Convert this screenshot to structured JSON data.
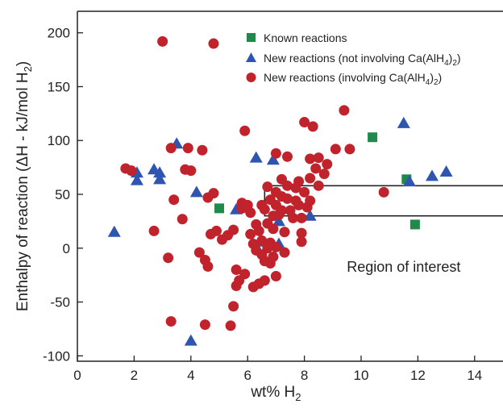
{
  "chart_data": {
    "type": "scatter",
    "xlabel": "wt% H",
    "xlabel_sub": "2",
    "ylabel_parts": [
      "Enthalpy of reaction (ΔH - kJ/mol H",
      "2",
      ")"
    ],
    "xlim": [
      0,
      15
    ],
    "ylim": [
      -105,
      220
    ],
    "x_ticks": [
      0,
      2,
      4,
      6,
      8,
      10,
      12,
      14
    ],
    "y_ticks": [
      -100,
      -50,
      0,
      50,
      100,
      150,
      200
    ],
    "grid": false,
    "legend_position": "top-right",
    "region": {
      "label": "Region of interest",
      "x": [
        6.6,
        15
      ],
      "y": [
        30,
        58
      ]
    },
    "colors": {
      "known": "#1f8a4c",
      "not_involving": "#2e55b0",
      "involving": "#c0232b",
      "axis": "#222222"
    },
    "series": [
      {
        "name": "Known reactions",
        "label_parts": [
          "Known reactions"
        ],
        "marker": "square",
        "color": "#1f8a4c",
        "points": [
          [
            5.0,
            37
          ],
          [
            10.4,
            103
          ],
          [
            11.6,
            64
          ],
          [
            11.9,
            22
          ]
        ]
      },
      {
        "name": "New reactions (not involving Ca(AlH4)2)",
        "label_parts": [
          "New reactions (not involving Ca(AlH",
          "4",
          ")",
          "2",
          ")"
        ],
        "marker": "triangle",
        "color": "#2e55b0",
        "points": [
          [
            1.3,
            15
          ],
          [
            2.1,
            70
          ],
          [
            2.1,
            63
          ],
          [
            2.7,
            73
          ],
          [
            2.9,
            70
          ],
          [
            2.9,
            64
          ],
          [
            3.5,
            97
          ],
          [
            4.0,
            -86
          ],
          [
            4.2,
            52
          ],
          [
            5.6,
            36
          ],
          [
            6.3,
            84
          ],
          [
            6.5,
            6
          ],
          [
            6.9,
            82
          ],
          [
            7.1,
            4
          ],
          [
            7.1,
            25
          ],
          [
            8.2,
            30
          ],
          [
            11.5,
            116
          ],
          [
            11.7,
            62
          ],
          [
            12.5,
            67
          ],
          [
            13.0,
            71
          ]
        ]
      },
      {
        "name": "New reactions (involving Ca(AlH4)2)",
        "label_parts": [
          "New reactions (involving Ca(AlH",
          "4",
          ")",
          "2",
          ")"
        ],
        "marker": "circle",
        "color": "#c0232b",
        "points": [
          [
            1.7,
            74
          ],
          [
            1.9,
            72
          ],
          [
            2.7,
            16
          ],
          [
            3.0,
            192
          ],
          [
            3.2,
            -9
          ],
          [
            3.3,
            93
          ],
          [
            3.3,
            -68
          ],
          [
            3.4,
            45
          ],
          [
            3.7,
            27
          ],
          [
            3.8,
            73
          ],
          [
            3.9,
            93
          ],
          [
            4.0,
            72
          ],
          [
            4.3,
            -4
          ],
          [
            4.4,
            91
          ],
          [
            4.5,
            -71
          ],
          [
            4.5,
            -11
          ],
          [
            4.6,
            -17
          ],
          [
            4.6,
            47
          ],
          [
            4.7,
            13
          ],
          [
            4.8,
            190
          ],
          [
            4.8,
            51
          ],
          [
            4.9,
            16
          ],
          [
            5.1,
            8
          ],
          [
            5.3,
            12
          ],
          [
            5.4,
            -72
          ],
          [
            5.5,
            -54
          ],
          [
            5.5,
            17
          ],
          [
            5.6,
            -35
          ],
          [
            5.6,
            -20
          ],
          [
            5.7,
            -30
          ],
          [
            5.8,
            42
          ],
          [
            5.8,
            37
          ],
          [
            5.9,
            109
          ],
          [
            5.9,
            -24
          ],
          [
            6.0,
            40
          ],
          [
            6.1,
            33
          ],
          [
            6.1,
            13
          ],
          [
            6.2,
            -36
          ],
          [
            6.2,
            4
          ],
          [
            6.3,
            22
          ],
          [
            6.3,
            -2
          ],
          [
            6.4,
            -33
          ],
          [
            6.4,
            16
          ],
          [
            6.5,
            40
          ],
          [
            6.5,
            -6
          ],
          [
            6.5,
            7
          ],
          [
            6.6,
            36
          ],
          [
            6.6,
            -12
          ],
          [
            6.6,
            -30
          ],
          [
            6.7,
            57
          ],
          [
            6.7,
            23
          ],
          [
            6.7,
            0
          ],
          [
            6.8,
            45
          ],
          [
            6.8,
            5
          ],
          [
            6.8,
            -14
          ],
          [
            6.9,
            30
          ],
          [
            6.9,
            18
          ],
          [
            6.9,
            -8
          ],
          [
            7.0,
            88
          ],
          [
            7.0,
            52
          ],
          [
            7.0,
            40
          ],
          [
            7.0,
            1
          ],
          [
            7.0,
            -26
          ],
          [
            7.1,
            31
          ],
          [
            7.2,
            64
          ],
          [
            7.2,
            48
          ],
          [
            7.2,
            35
          ],
          [
            7.3,
            15
          ],
          [
            7.3,
            -4
          ],
          [
            7.4,
            85
          ],
          [
            7.4,
            58
          ],
          [
            7.4,
            46
          ],
          [
            7.5,
            35
          ],
          [
            7.6,
            28
          ],
          [
            7.7,
            56
          ],
          [
            7.7,
            44
          ],
          [
            7.8,
            62
          ],
          [
            7.8,
            40
          ],
          [
            7.9,
            28
          ],
          [
            7.9,
            14
          ],
          [
            7.9,
            6
          ],
          [
            8.0,
            117
          ],
          [
            8.0,
            52
          ],
          [
            8.1,
            38
          ],
          [
            8.2,
            83
          ],
          [
            8.2,
            65
          ],
          [
            8.2,
            44
          ],
          [
            8.3,
            113
          ],
          [
            8.4,
            74
          ],
          [
            8.5,
            84
          ],
          [
            8.5,
            58
          ],
          [
            8.7,
            69
          ],
          [
            8.8,
            78
          ],
          [
            9.1,
            92
          ],
          [
            9.4,
            128
          ],
          [
            9.6,
            92
          ],
          [
            10.8,
            52
          ]
        ]
      }
    ]
  }
}
